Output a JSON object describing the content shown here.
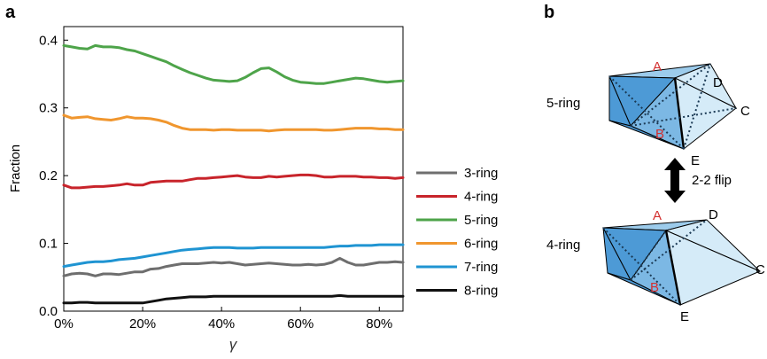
{
  "panel_a": {
    "label": "a",
    "legend_labels": [
      "3-ring",
      "4-ring",
      "5-ring",
      "6-ring",
      "7-ring",
      "8-ring"
    ]
  },
  "panel_b": {
    "label": "b",
    "top_label": "5-ring",
    "bottom_label": "4-ring",
    "flip_label": "2-2 flip",
    "vertex_A": "A",
    "vertex_B": "B",
    "vertex_C": "C",
    "vertex_D": "D",
    "vertex_E": "E",
    "colors": {
      "dark_face": "#4d9ad6",
      "mid_face": "#7cb8e4",
      "light_face": "#d5ebf8",
      "vertex_red": "#d32f2f"
    }
  },
  "chart_data": {
    "type": "line",
    "xlabel": "γ",
    "ylabel": "Fraction",
    "xlim": [
      0,
      86
    ],
    "ylim": [
      0,
      0.42
    ],
    "x_ticks": [
      0,
      20,
      40,
      60,
      80
    ],
    "x_tick_labels": [
      "0%",
      "20%",
      "40%",
      "60%",
      "80%"
    ],
    "y_ticks": [
      0,
      0.1,
      0.2,
      0.3,
      0.4
    ],
    "y_tick_labels": [
      "0.0",
      "0.1",
      "0.2",
      "0.3",
      "0.4"
    ],
    "legend_position": "right",
    "x": [
      0,
      2,
      4,
      6,
      8,
      10,
      12,
      14,
      16,
      18,
      20,
      22,
      24,
      26,
      28,
      30,
      32,
      34,
      36,
      38,
      40,
      42,
      44,
      46,
      48,
      50,
      52,
      54,
      56,
      58,
      60,
      62,
      64,
      66,
      68,
      70,
      72,
      74,
      76,
      78,
      80,
      82,
      84,
      86
    ],
    "series": [
      {
        "name": "3-ring",
        "color": "#6e6e6e",
        "values": [
          0.052,
          0.055,
          0.056,
          0.055,
          0.052,
          0.055,
          0.055,
          0.054,
          0.056,
          0.058,
          0.058,
          0.062,
          0.063,
          0.066,
          0.068,
          0.07,
          0.07,
          0.07,
          0.071,
          0.072,
          0.071,
          0.072,
          0.07,
          0.068,
          0.069,
          0.07,
          0.071,
          0.07,
          0.069,
          0.068,
          0.068,
          0.069,
          0.068,
          0.069,
          0.072,
          0.078,
          0.072,
          0.068,
          0.068,
          0.07,
          0.072,
          0.072,
          0.073,
          0.072
        ]
      },
      {
        "name": "4-ring",
        "color": "#c8242b",
        "values": [
          0.186,
          0.182,
          0.182,
          0.183,
          0.184,
          0.184,
          0.185,
          0.186,
          0.188,
          0.186,
          0.186,
          0.19,
          0.191,
          0.192,
          0.192,
          0.192,
          0.194,
          0.196,
          0.196,
          0.197,
          0.198,
          0.199,
          0.2,
          0.198,
          0.197,
          0.197,
          0.199,
          0.198,
          0.199,
          0.2,
          0.201,
          0.201,
          0.2,
          0.198,
          0.198,
          0.199,
          0.199,
          0.199,
          0.198,
          0.198,
          0.197,
          0.197,
          0.196,
          0.197
        ]
      },
      {
        "name": "5-ring",
        "color": "#4ea44a",
        "values": [
          0.392,
          0.39,
          0.388,
          0.387,
          0.392,
          0.39,
          0.39,
          0.389,
          0.386,
          0.384,
          0.38,
          0.376,
          0.372,
          0.368,
          0.362,
          0.357,
          0.352,
          0.348,
          0.344,
          0.341,
          0.34,
          0.339,
          0.34,
          0.345,
          0.352,
          0.358,
          0.359,
          0.353,
          0.346,
          0.341,
          0.338,
          0.337,
          0.336,
          0.336,
          0.338,
          0.34,
          0.342,
          0.344,
          0.343,
          0.341,
          0.339,
          0.338,
          0.339,
          0.34
        ]
      },
      {
        "name": "6-ring",
        "color": "#f0962e",
        "values": [
          0.289,
          0.285,
          0.286,
          0.287,
          0.284,
          0.283,
          0.282,
          0.284,
          0.287,
          0.285,
          0.285,
          0.284,
          0.282,
          0.279,
          0.274,
          0.27,
          0.268,
          0.268,
          0.268,
          0.267,
          0.268,
          0.268,
          0.267,
          0.267,
          0.267,
          0.267,
          0.266,
          0.267,
          0.268,
          0.268,
          0.268,
          0.268,
          0.268,
          0.267,
          0.267,
          0.268,
          0.269,
          0.27,
          0.27,
          0.27,
          0.269,
          0.269,
          0.268,
          0.268
        ]
      },
      {
        "name": "7-ring",
        "color": "#1f94d2",
        "values": [
          0.066,
          0.068,
          0.07,
          0.072,
          0.073,
          0.073,
          0.074,
          0.076,
          0.077,
          0.078,
          0.08,
          0.082,
          0.084,
          0.086,
          0.088,
          0.09,
          0.091,
          0.092,
          0.093,
          0.094,
          0.094,
          0.094,
          0.093,
          0.093,
          0.093,
          0.094,
          0.094,
          0.094,
          0.094,
          0.094,
          0.094,
          0.094,
          0.094,
          0.094,
          0.095,
          0.096,
          0.096,
          0.097,
          0.097,
          0.097,
          0.098,
          0.098,
          0.098,
          0.098
        ]
      },
      {
        "name": "8-ring",
        "color": "#111111",
        "values": [
          0.012,
          0.012,
          0.013,
          0.013,
          0.012,
          0.012,
          0.012,
          0.012,
          0.012,
          0.012,
          0.012,
          0.014,
          0.016,
          0.018,
          0.019,
          0.02,
          0.021,
          0.021,
          0.021,
          0.022,
          0.022,
          0.022,
          0.022,
          0.022,
          0.022,
          0.022,
          0.022,
          0.022,
          0.022,
          0.022,
          0.022,
          0.022,
          0.022,
          0.022,
          0.022,
          0.023,
          0.022,
          0.022,
          0.022,
          0.022,
          0.022,
          0.022,
          0.022,
          0.022
        ]
      }
    ]
  }
}
